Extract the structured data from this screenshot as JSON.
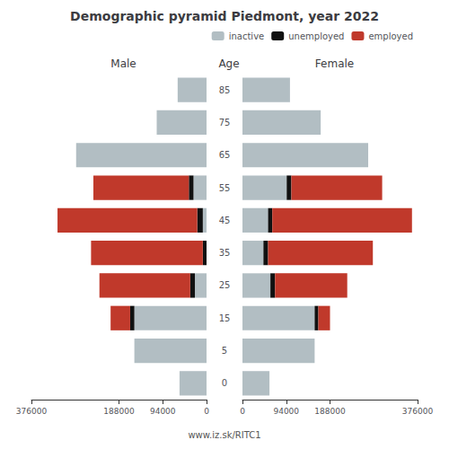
{
  "chart_data": {
    "type": "bar",
    "orientation": "horizontal",
    "stacked": true,
    "title": "Demographic pyramid Piedmont, year 2022",
    "subtitle": "www.iz.sk/RITC1",
    "ylabel": "Age",
    "categories": [
      0,
      5,
      15,
      25,
      35,
      45,
      55,
      65,
      75,
      85
    ],
    "grid": false,
    "legend": "upper right",
    "panels": [
      {
        "title": "Male",
        "xlim": [
          0,
          376000
        ],
        "xticks": [
          0,
          94000,
          188000,
          376000
        ],
        "series": [
          {
            "name": "inactive",
            "color": "#b2bec3",
            "values": [
              58000,
              155000,
              155000,
              25000,
              0,
              8000,
              28000,
              280000,
              107000,
              62000
            ]
          },
          {
            "name": "unemployed",
            "color": "#111111",
            "values": [
              0,
              0,
              9000,
              10000,
              8000,
              12000,
              10000,
              0,
              0,
              0
            ]
          },
          {
            "name": "employed",
            "color": "#c0392b",
            "values": [
              0,
              0,
              42000,
              195000,
              240000,
              300000,
              205000,
              0,
              0,
              0
            ]
          }
        ]
      },
      {
        "title": "Female",
        "xlim": [
          0,
          376000
        ],
        "xticks": [
          0,
          94000,
          188000,
          376000
        ],
        "series": [
          {
            "name": "inactive",
            "color": "#b2bec3",
            "values": [
              58000,
              155000,
              155000,
              60000,
              45000,
              55000,
              95000,
              270000,
              168000,
              102000
            ]
          },
          {
            "name": "unemployed",
            "color": "#111111",
            "values": [
              0,
              0,
              8000,
              10000,
              10000,
              9000,
              10000,
              0,
              0,
              0
            ]
          },
          {
            "name": "employed",
            "color": "#c0392b",
            "values": [
              0,
              0,
              25000,
              155000,
              225000,
              300000,
              195000,
              0,
              0,
              0
            ]
          }
        ]
      }
    ]
  }
}
